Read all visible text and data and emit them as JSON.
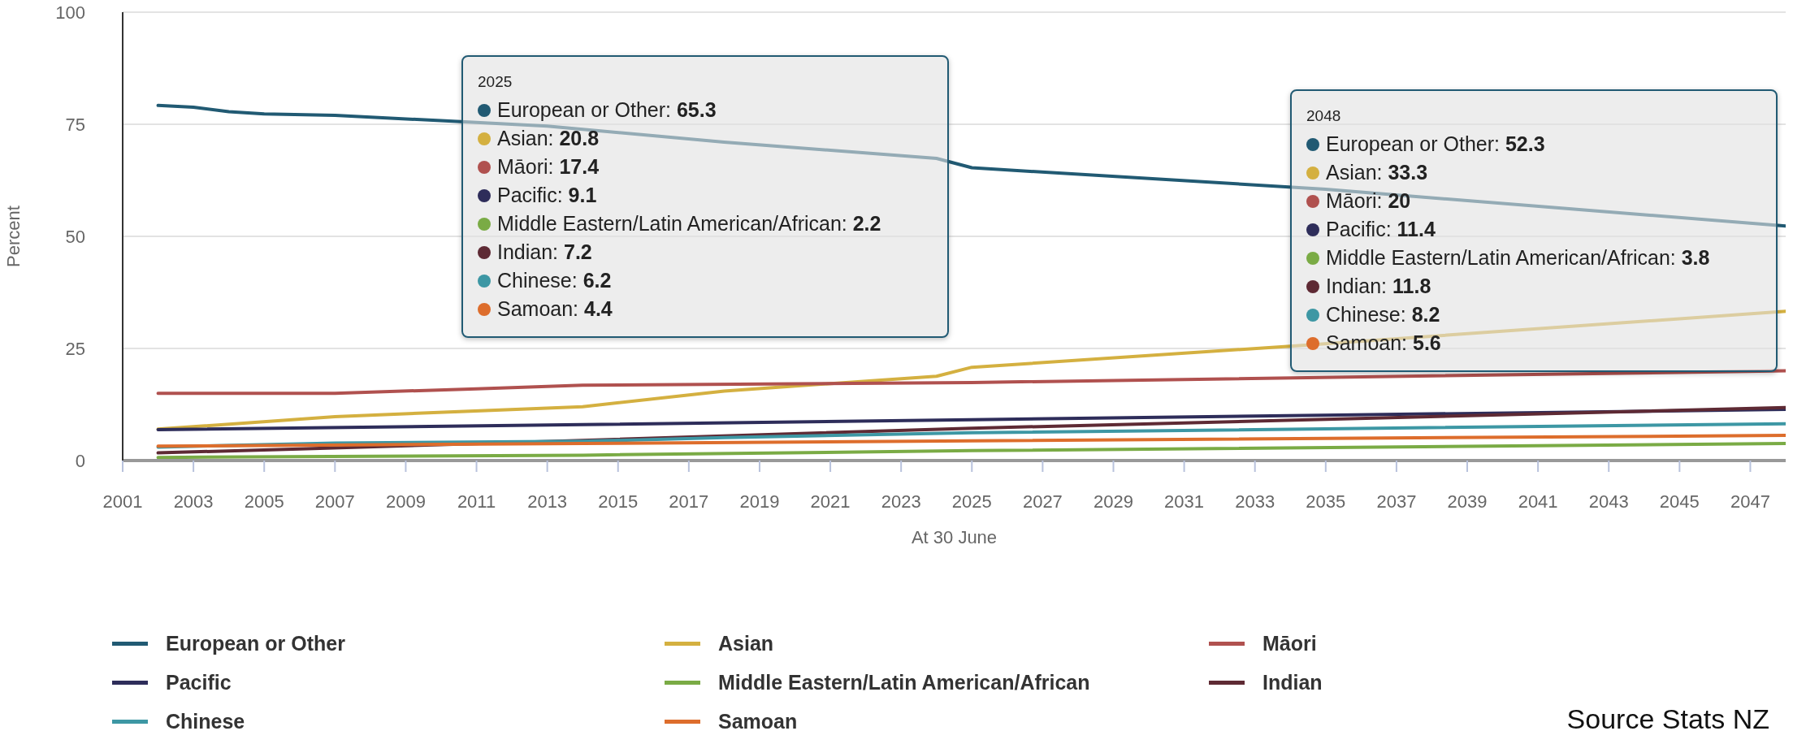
{
  "chart_data": {
    "type": "line",
    "xlabel": "At 30 June",
    "ylabel": "Percent",
    "xlim": [
      2001,
      2048
    ],
    "xticks": [
      2001,
      2003,
      2005,
      2007,
      2009,
      2011,
      2013,
      2015,
      2017,
      2019,
      2021,
      2023,
      2025,
      2027,
      2029,
      2031,
      2033,
      2035,
      2037,
      2039,
      2041,
      2043,
      2045,
      2047
    ],
    "ylim": [
      0,
      100
    ],
    "yticks": [
      0,
      25,
      50,
      75,
      100
    ],
    "grid": "y",
    "legend": "bottom",
    "marker": "none",
    "line_style": "solid",
    "series": [
      {
        "name": "European or Other",
        "color": "#215a73",
        "x": [
          2002,
          2003,
          2004,
          2005,
          2007,
          2010,
          2013,
          2018,
          2024,
          2025,
          2035,
          2048
        ],
        "values": [
          79.2,
          78.8,
          77.8,
          77.3,
          77,
          75.8,
          74.6,
          71,
          67.4,
          65.3,
          60.5,
          52.3
        ]
      },
      {
        "name": "Asian",
        "color": "#d4b040",
        "x": [
          2002,
          2007,
          2014,
          2018,
          2024,
          2025,
          2034,
          2048
        ],
        "values": [
          7,
          9.8,
          12,
          15.5,
          18.8,
          20.8,
          25.5,
          33.3
        ]
      },
      {
        "name": "Māori",
        "color": "#b0514f",
        "x": [
          2002,
          2007,
          2011,
          2014,
          2025,
          2048
        ],
        "values": [
          15,
          15,
          16,
          16.8,
          17.4,
          20
        ]
      },
      {
        "name": "Pacific",
        "color": "#2e2d5a",
        "x": [
          2002,
          2014,
          2025,
          2048
        ],
        "values": [
          6.9,
          8,
          9.1,
          11.4
        ]
      },
      {
        "name": "Middle Eastern/Latin American/African",
        "color": "#7aab45",
        "x": [
          2002,
          2014,
          2025,
          2048
        ],
        "values": [
          0.7,
          1.2,
          2.2,
          3.8
        ]
      },
      {
        "name": "Indian",
        "color": "#5e2a34",
        "x": [
          2002,
          2006,
          2014,
          2025,
          2048
        ],
        "values": [
          1.7,
          2.6,
          4.5,
          7.2,
          11.8
        ]
      },
      {
        "name": "Chinese",
        "color": "#3d97a4",
        "x": [
          2002,
          2007,
          2014,
          2018,
          2025,
          2048
        ],
        "values": [
          3,
          3.9,
          4.3,
          5.1,
          6.2,
          8.2
        ]
      },
      {
        "name": "Samoan",
        "color": "#dd6d2c",
        "x": [
          2002,
          2014,
          2025,
          2048
        ],
        "values": [
          3.2,
          3.8,
          4.4,
          5.6
        ]
      }
    ],
    "annotations": [
      "2025",
      "European or Other: 65.3",
      "Asian: 20.8",
      "Māori: 17.4",
      "Pacific: 9.1",
      "Middle Eastern/Latin American/African: 2.2",
      "Indian: 7.2",
      "Chinese: 6.2",
      "Samoan: 4.4",
      "2048",
      "European or Other: 52.3",
      "Asian: 33.3",
      "Māori: 20",
      "Pacific: 11.4",
      "Middle Eastern/Latin American/African: 3.8",
      "Indian: 11.8",
      "Chinese: 8.2",
      "Samoan: 5.6",
      "Source Stats NZ"
    ]
  }
}
